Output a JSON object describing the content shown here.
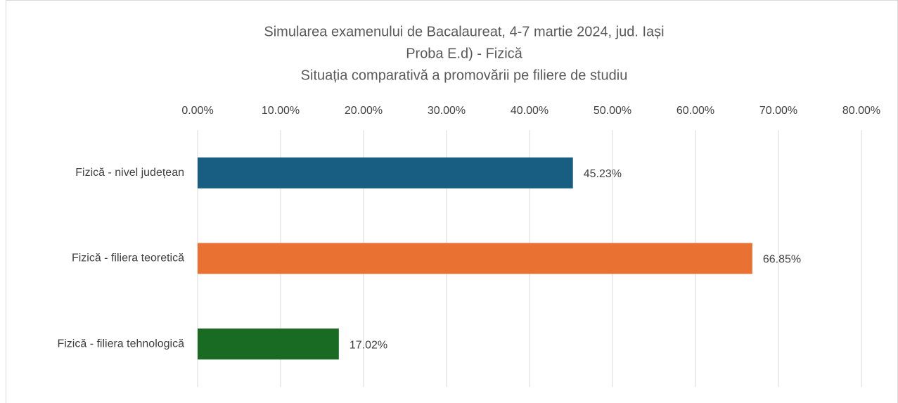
{
  "chart_data": {
    "type": "bar",
    "orientation": "horizontal",
    "title": [
      "Simularea examenului de Bacalaureat, 4-7 martie 2024, jud. Iași",
      "Proba E.d) - Fizică",
      "Situația comparativă a promovării pe filiere de studiu"
    ],
    "categories": [
      "Fizică - nivel județean",
      "Fizică - filiera teoretică",
      "Fizică - filiera tehnologică"
    ],
    "values": [
      45.23,
      66.85,
      17.02
    ],
    "value_labels": [
      "45.23%",
      "66.85%",
      "17.02%"
    ],
    "colors": [
      "#175e82",
      "#e97132",
      "#196b24"
    ],
    "xlim": [
      0,
      80
    ],
    "xticks": [
      {
        "value": 0,
        "label": "0.00%"
      },
      {
        "value": 10,
        "label": "10.00%"
      },
      {
        "value": 20,
        "label": "20.00%"
      },
      {
        "value": 30,
        "label": "30.00%"
      },
      {
        "value": 40,
        "label": "40.00%"
      },
      {
        "value": 50,
        "label": "50.00%"
      },
      {
        "value": 60,
        "label": "60.00%"
      },
      {
        "value": 70,
        "label": "70.00%"
      },
      {
        "value": 80,
        "label": "80.00%"
      }
    ],
    "grid": true
  }
}
